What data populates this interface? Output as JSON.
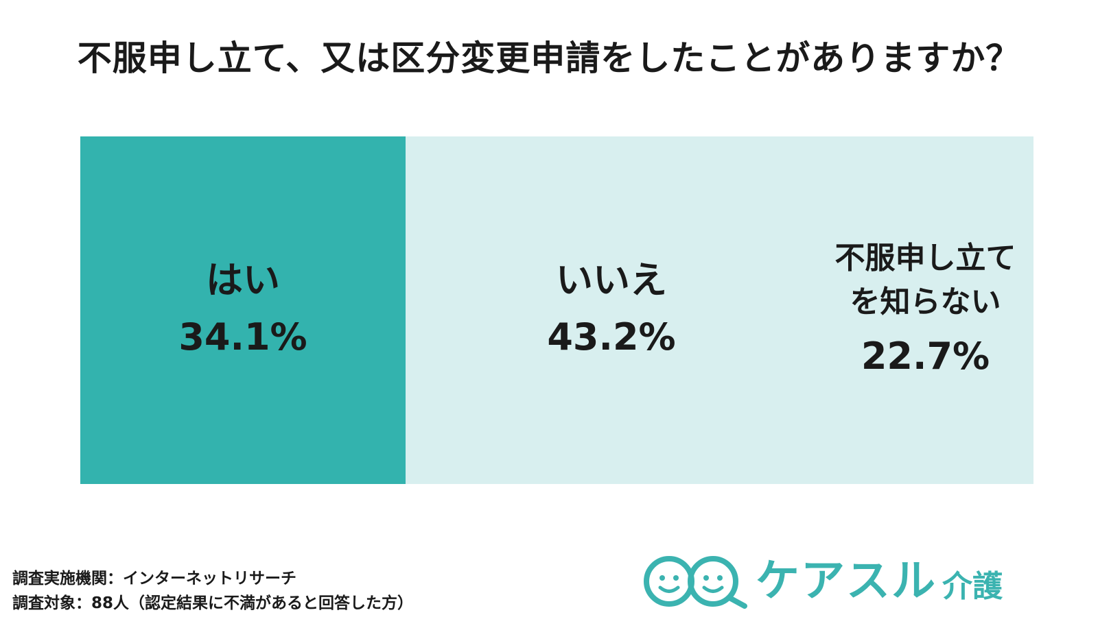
{
  "chart_data": {
    "type": "bar",
    "title": "不服申し立て、又は区分変更申請をしたことがありますか？",
    "categories": [
      "はい",
      "いいえ",
      "不服申し立て\nを知らない"
    ],
    "values": [
      34.1,
      43.2,
      22.7
    ],
    "value_labels": [
      "34.1%",
      "43.2%",
      "22.7%"
    ],
    "unit": "%",
    "xlim": [
      0,
      100
    ],
    "colors": [
      "#33b3ae",
      "#d8efef",
      "#d8efef"
    ],
    "grid": false,
    "legend": "none"
  },
  "footnotes": {
    "research_org": "調査実施機関：インターネットリサーチ",
    "target": "調査対象：88人（認定結果に不満があると回答した方）"
  },
  "logo": {
    "icon": "smile-faces-logo-icon",
    "text": "ケアスル",
    "sub": "介護",
    "color": "#3bb3b0"
  }
}
